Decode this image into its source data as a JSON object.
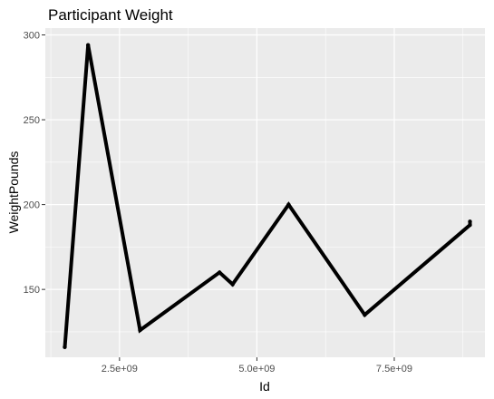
{
  "chart_data": {
    "type": "line",
    "title": "Participant Weight",
    "xlabel": "Id",
    "ylabel": "WeightPounds",
    "xlim": [
      1150000000,
      9150000000
    ],
    "ylim": [
      110,
      304
    ],
    "x_ticks": [
      2500000000,
      5000000000,
      7500000000
    ],
    "x_tick_labels": [
      "2.5e+09",
      "5.0e+09",
      "7.5e+09"
    ],
    "y_ticks": [
      150,
      200,
      250,
      300
    ],
    "y_tick_labels": [
      "150",
      "200",
      "250",
      "300"
    ],
    "grid": true,
    "legend": "none",
    "colors": {
      "panel": "#ebebeb",
      "grid": "#ffffff",
      "line": "#000000",
      "tick_text": "#4d4d4d"
    },
    "series": [
      {
        "x": [
          1503960366,
          1927972279,
          2873212765,
          4319703577,
          4558609924,
          5577150313,
          6962181067,
          8877689391,
          8877689391
        ],
        "values": [
          116,
          294,
          126,
          160,
          153,
          200,
          135,
          188,
          190
        ]
      }
    ]
  }
}
